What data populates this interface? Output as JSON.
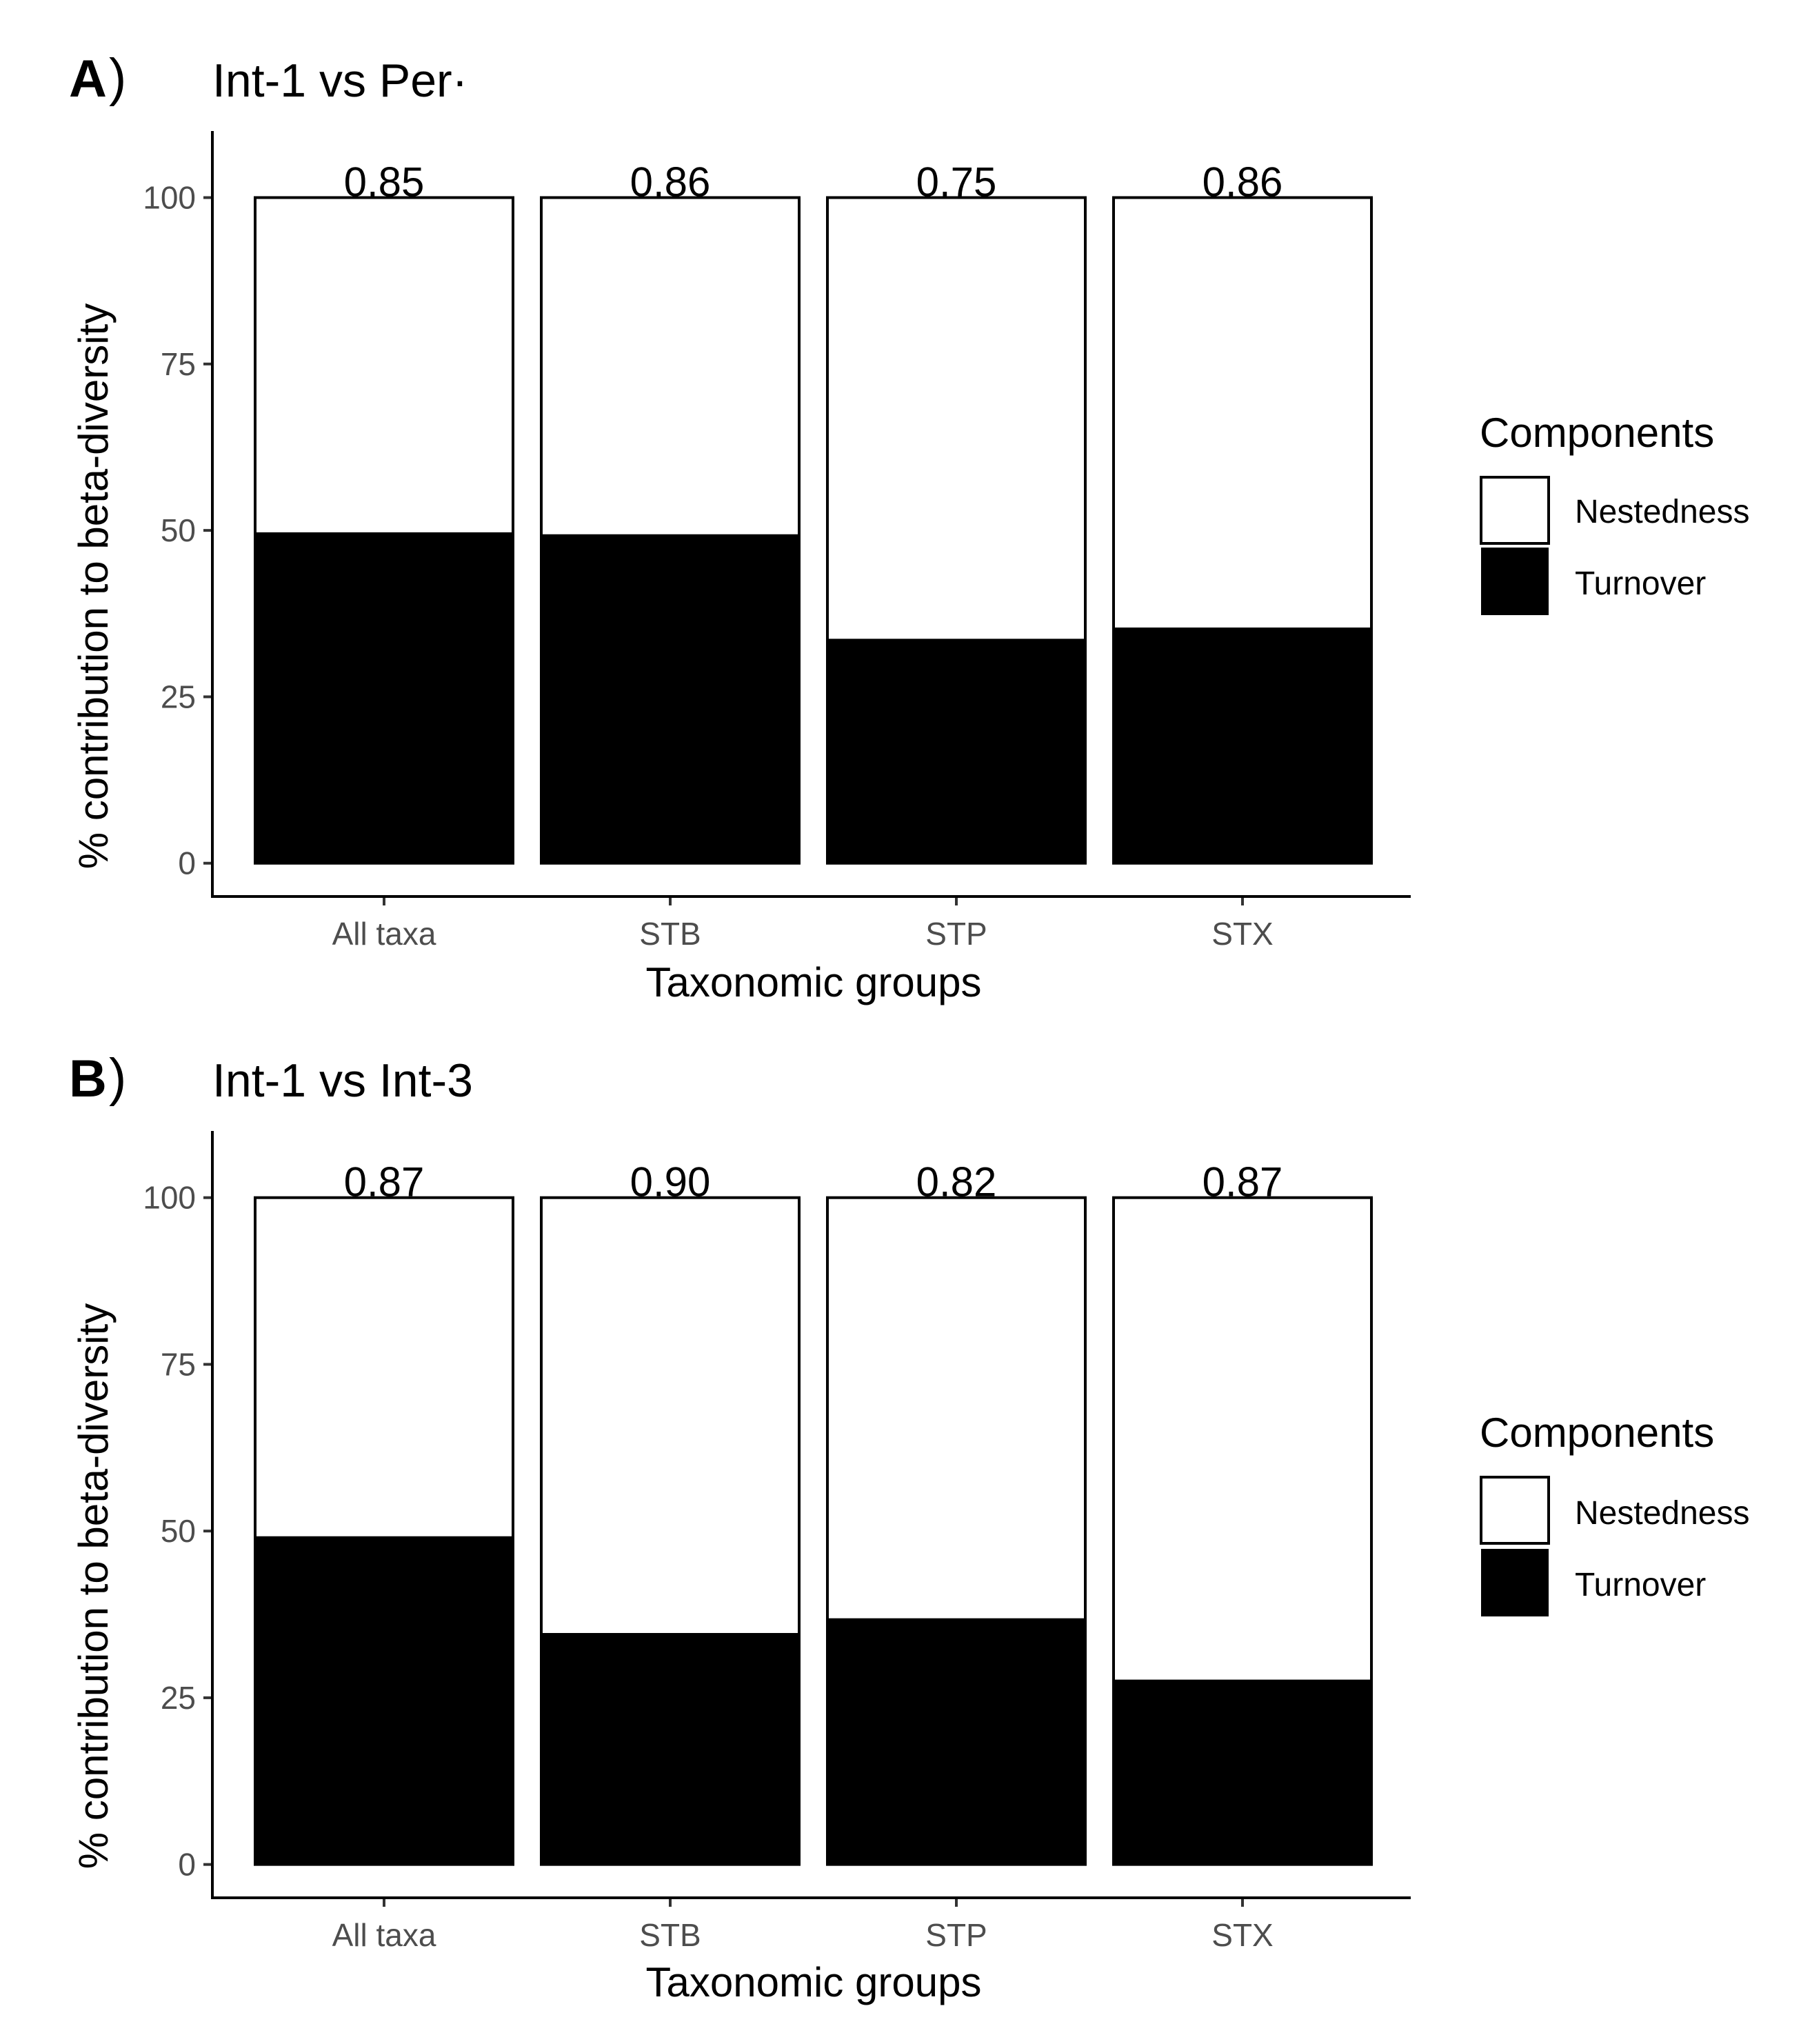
{
  "chart_data": [
    {
      "panel": "A",
      "title": "Int-1 vs Per·",
      "type": "bar",
      "stacked": true,
      "categories": [
        "All taxa",
        "STB",
        "STP",
        "STX"
      ],
      "series": [
        {
          "name": "Turnover",
          "color": "#000000",
          "values": [
            49.5,
            49.2,
            33.5,
            35.2
          ]
        },
        {
          "name": "Nestedness",
          "color": "#ffffff",
          "values": [
            50.5,
            50.8,
            66.5,
            64.8
          ]
        }
      ],
      "bar_labels": [
        "0.85",
        "0.86",
        "0.75",
        "0.86"
      ],
      "xlabel": "Taxonomic groups",
      "ylabel": "% contribution to beta-diversity",
      "ylim": [
        -5,
        110
      ],
      "yticks": [
        0,
        25,
        50,
        75,
        100
      ],
      "yticklabels": [
        "0",
        "25",
        "50",
        "75",
        "100"
      ],
      "legend": {
        "title": "Components",
        "entries": [
          "Nestedness",
          "Turnover"
        ],
        "position": "right"
      }
    },
    {
      "panel": "B",
      "title": "Int-1 vs Int-3",
      "type": "bar",
      "stacked": true,
      "categories": [
        "All taxa",
        "STB",
        "STP",
        "STX"
      ],
      "series": [
        {
          "name": "Turnover",
          "color": "#000000",
          "values": [
            49.0,
            34.5,
            36.7,
            27.5
          ]
        },
        {
          "name": "Nestedness",
          "color": "#ffffff",
          "values": [
            51.0,
            65.5,
            63.3,
            72.5
          ]
        }
      ],
      "bar_labels": [
        "0.87",
        "0.90",
        "0.82",
        "0.87"
      ],
      "xlabel": "Taxonomic groups",
      "ylabel": "% contribution to beta-diversity",
      "ylim": [
        -5,
        110
      ],
      "yticks": [
        0,
        25,
        50,
        75,
        100
      ],
      "yticklabels": [
        "0",
        "25",
        "50",
        "75",
        "100"
      ],
      "legend": {
        "title": "Components",
        "entries": [
          "Nestedness",
          "Turnover"
        ],
        "position": "right"
      }
    }
  ]
}
